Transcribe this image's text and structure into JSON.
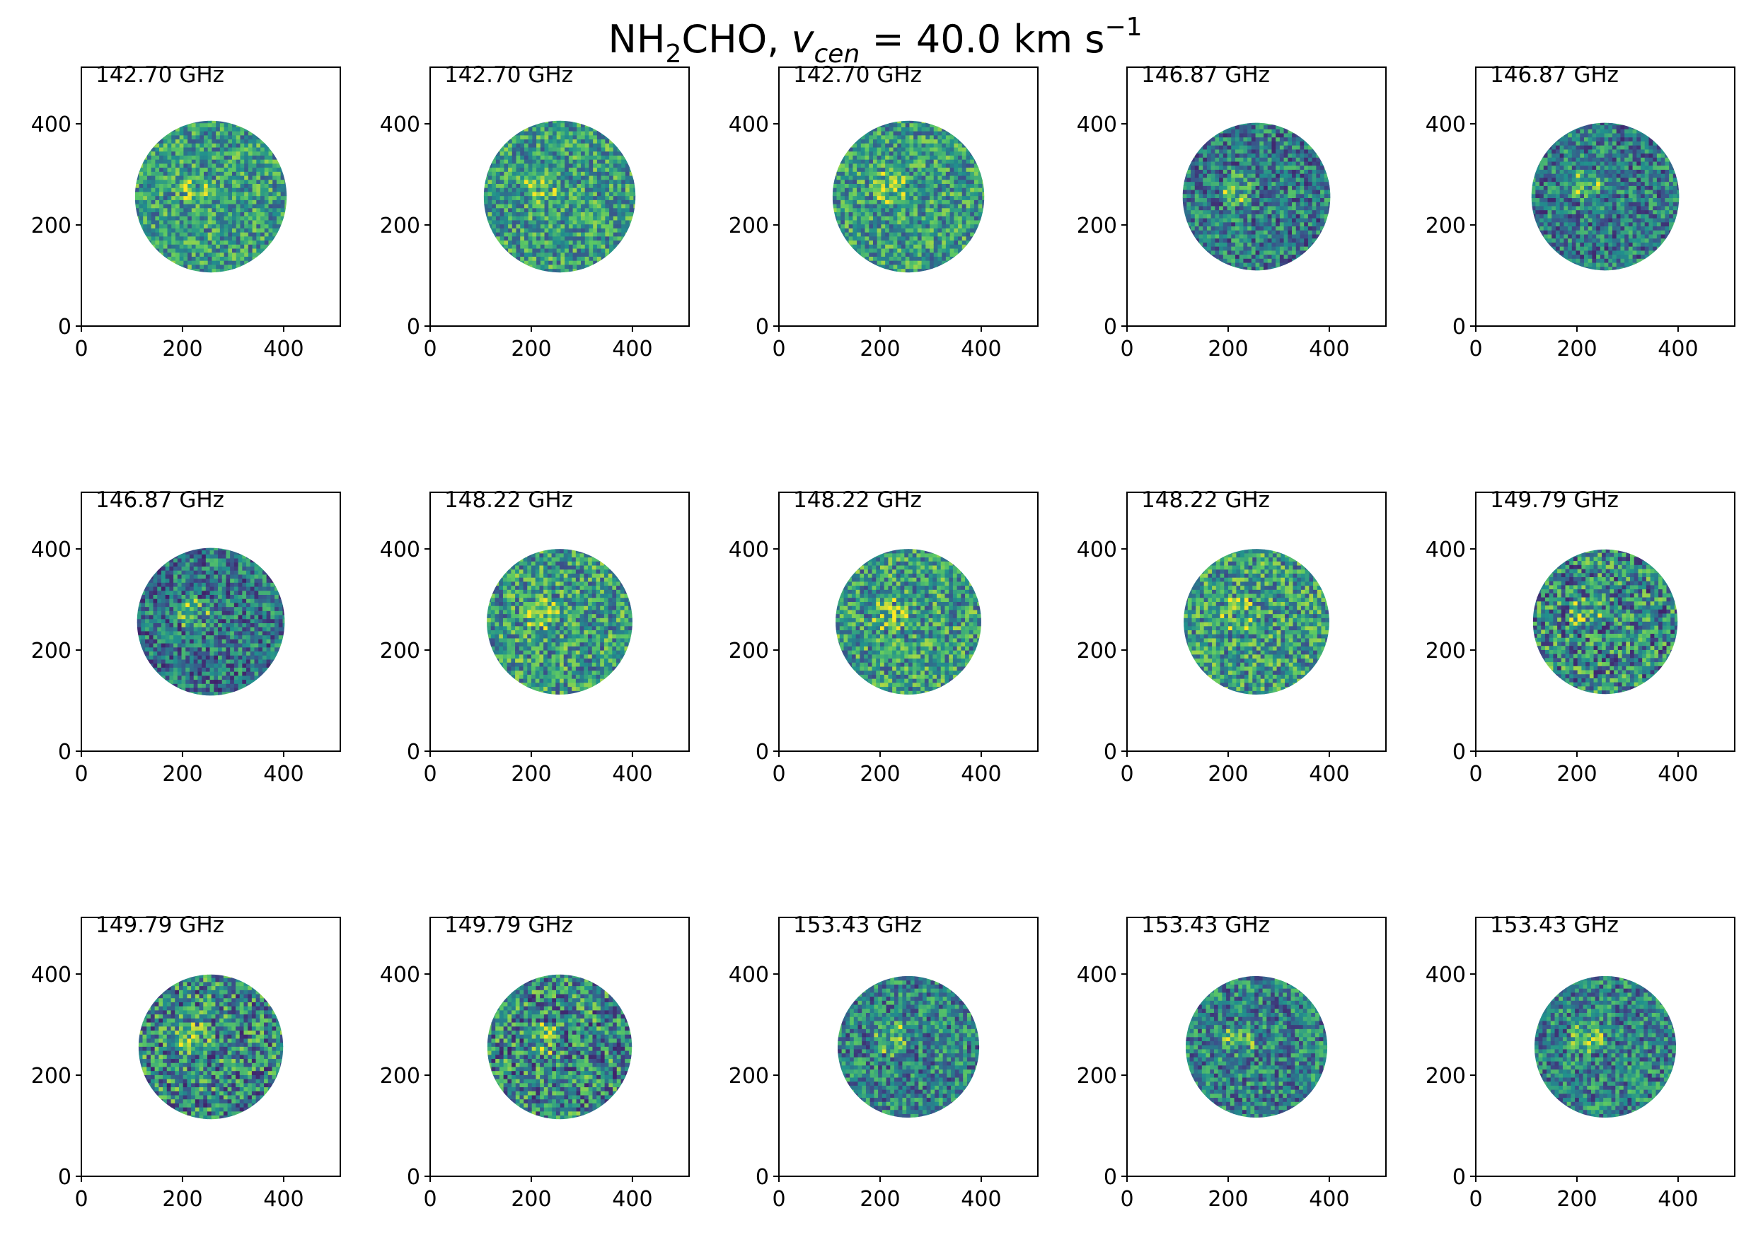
{
  "figure_title": {
    "molecule_main": "NH",
    "molecule_sub": "2",
    "molecule_rest": "CHO, ",
    "v_symbol": "v",
    "v_sub": "cen",
    "equals_value": " =  40.0 km s",
    "exponent": "−1"
  },
  "colormap": [
    "#440154",
    "#3b528b",
    "#21908d",
    "#5dc963",
    "#fde725"
  ],
  "chart_data": [
    {
      "type": "heatmap",
      "label": "142.70 GHz",
      "xlim": [
        0,
        512
      ],
      "ylim": [
        0,
        512
      ],
      "xticks": [
        0,
        200,
        400
      ],
      "yticks": [
        0,
        200,
        400
      ],
      "disk": {
        "cx": 256,
        "cy": 256,
        "r": 150
      },
      "seed": 11,
      "tone": 0.55,
      "noise": 0.6
    },
    {
      "type": "heatmap",
      "label": "142.70 GHz",
      "xlim": [
        0,
        512
      ],
      "ylim": [
        0,
        512
      ],
      "xticks": [
        0,
        200,
        400
      ],
      "yticks": [
        0,
        200,
        400
      ],
      "disk": {
        "cx": 256,
        "cy": 256,
        "r": 150
      },
      "seed": 12,
      "tone": 0.55,
      "noise": 0.6
    },
    {
      "type": "heatmap",
      "label": "142.70 GHz",
      "xlim": [
        0,
        512
      ],
      "ylim": [
        0,
        512
      ],
      "xticks": [
        0,
        200,
        400
      ],
      "yticks": [
        0,
        200,
        400
      ],
      "disk": {
        "cx": 256,
        "cy": 256,
        "r": 150
      },
      "seed": 13,
      "tone": 0.55,
      "noise": 0.6
    },
    {
      "type": "heatmap",
      "label": "146.87 GHz",
      "xlim": [
        0,
        512
      ],
      "ylim": [
        0,
        512
      ],
      "xticks": [
        0,
        200,
        400
      ],
      "yticks": [
        0,
        200,
        400
      ],
      "disk": {
        "cx": 256,
        "cy": 256,
        "r": 146
      },
      "seed": 21,
      "tone": 0.42,
      "noise": 0.6
    },
    {
      "type": "heatmap",
      "label": "146.87 GHz",
      "xlim": [
        0,
        512
      ],
      "ylim": [
        0,
        512
      ],
      "xticks": [
        0,
        200,
        400
      ],
      "yticks": [
        0,
        200,
        400
      ],
      "disk": {
        "cx": 256,
        "cy": 256,
        "r": 146
      },
      "seed": 22,
      "tone": 0.42,
      "noise": 0.6
    },
    {
      "type": "heatmap",
      "label": "146.87 GHz",
      "xlim": [
        0,
        512
      ],
      "ylim": [
        0,
        512
      ],
      "xticks": [
        0,
        200,
        400
      ],
      "yticks": [
        0,
        200,
        400
      ],
      "disk": {
        "cx": 256,
        "cy": 256,
        "r": 146
      },
      "seed": 23,
      "tone": 0.4,
      "noise": 0.6
    },
    {
      "type": "heatmap",
      "label": "148.22 GHz",
      "xlim": [
        0,
        512
      ],
      "ylim": [
        0,
        512
      ],
      "xticks": [
        0,
        200,
        400
      ],
      "yticks": [
        0,
        200,
        400
      ],
      "disk": {
        "cx": 256,
        "cy": 256,
        "r": 144
      },
      "seed": 31,
      "tone": 0.55,
      "noise": 0.65
    },
    {
      "type": "heatmap",
      "label": "148.22 GHz",
      "xlim": [
        0,
        512
      ],
      "ylim": [
        0,
        512
      ],
      "xticks": [
        0,
        200,
        400
      ],
      "yticks": [
        0,
        200,
        400
      ],
      "disk": {
        "cx": 256,
        "cy": 256,
        "r": 144
      },
      "seed": 32,
      "tone": 0.55,
      "noise": 0.65
    },
    {
      "type": "heatmap",
      "label": "148.22 GHz",
      "xlim": [
        0,
        512
      ],
      "ylim": [
        0,
        512
      ],
      "xticks": [
        0,
        200,
        400
      ],
      "yticks": [
        0,
        200,
        400
      ],
      "disk": {
        "cx": 256,
        "cy": 256,
        "r": 144
      },
      "seed": 33,
      "tone": 0.55,
      "noise": 0.65
    },
    {
      "type": "heatmap",
      "label": "149.79 GHz",
      "xlim": [
        0,
        512
      ],
      "ylim": [
        0,
        512
      ],
      "xticks": [
        0,
        200,
        400
      ],
      "yticks": [
        0,
        200,
        400
      ],
      "disk": {
        "cx": 256,
        "cy": 256,
        "r": 143
      },
      "seed": 41,
      "tone": 0.48,
      "noise": 0.75
    },
    {
      "type": "heatmap",
      "label": "149.79 GHz",
      "xlim": [
        0,
        512
      ],
      "ylim": [
        0,
        512
      ],
      "xticks": [
        0,
        200,
        400
      ],
      "yticks": [
        0,
        200,
        400
      ],
      "disk": {
        "cx": 256,
        "cy": 256,
        "r": 143
      },
      "seed": 42,
      "tone": 0.48,
      "noise": 0.75
    },
    {
      "type": "heatmap",
      "label": "149.79 GHz",
      "xlim": [
        0,
        512
      ],
      "ylim": [
        0,
        512
      ],
      "xticks": [
        0,
        200,
        400
      ],
      "yticks": [
        0,
        200,
        400
      ],
      "disk": {
        "cx": 256,
        "cy": 256,
        "r": 143
      },
      "seed": 43,
      "tone": 0.48,
      "noise": 0.75
    },
    {
      "type": "heatmap",
      "label": "153.43 GHz",
      "xlim": [
        0,
        512
      ],
      "ylim": [
        0,
        512
      ],
      "xticks": [
        0,
        200,
        400
      ],
      "yticks": [
        0,
        200,
        400
      ],
      "disk": {
        "cx": 256,
        "cy": 256,
        "r": 140
      },
      "seed": 51,
      "tone": 0.45,
      "noise": 0.6
    },
    {
      "type": "heatmap",
      "label": "153.43 GHz",
      "xlim": [
        0,
        512
      ],
      "ylim": [
        0,
        512
      ],
      "xticks": [
        0,
        200,
        400
      ],
      "yticks": [
        0,
        200,
        400
      ],
      "disk": {
        "cx": 256,
        "cy": 256,
        "r": 140
      },
      "seed": 52,
      "tone": 0.45,
      "noise": 0.6
    },
    {
      "type": "heatmap",
      "label": "153.43 GHz",
      "xlim": [
        0,
        512
      ],
      "ylim": [
        0,
        512
      ],
      "xticks": [
        0,
        200,
        400
      ],
      "yticks": [
        0,
        200,
        400
      ],
      "disk": {
        "cx": 256,
        "cy": 256,
        "r": 140
      },
      "seed": 53,
      "tone": 0.45,
      "noise": 0.6
    }
  ]
}
